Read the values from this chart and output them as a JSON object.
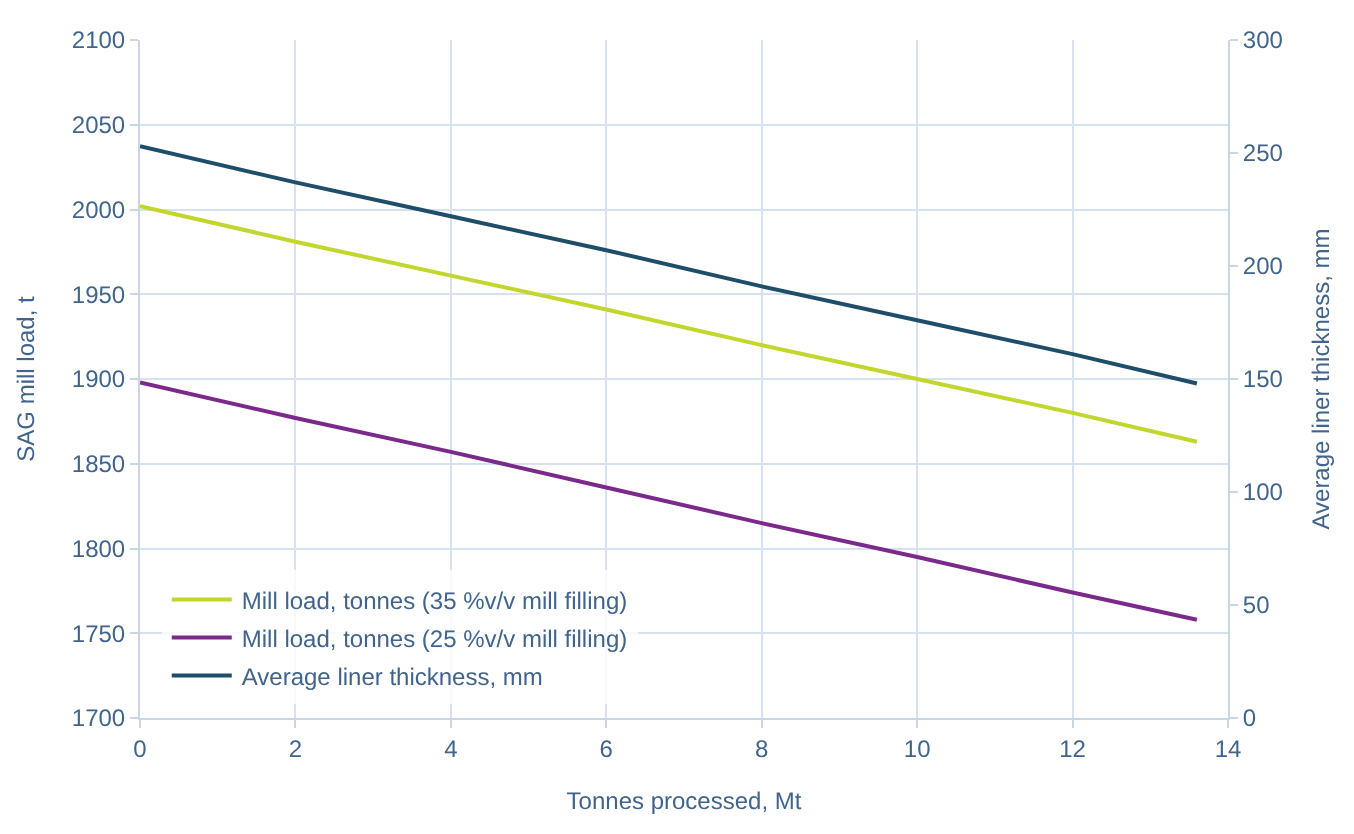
{
  "chart_data": {
    "type": "line",
    "xlabel": "Tonnes processed, Mt",
    "ylabel": "SAG mill load, t",
    "y2label": "Average liner thickness, mm",
    "x": [
      0,
      2,
      4,
      6,
      8,
      10,
      12,
      13.6
    ],
    "series": [
      {
        "name": "Mill load, tonnes (35 %v/v mill filling)",
        "color": "#c3d62e",
        "values": [
          2002,
          1981,
          1961,
          1941,
          1920,
          1900,
          1880,
          1863
        ]
      },
      {
        "name": "Mill load, tonnes (25 %v/v mill filling)",
        "color": "#7b2a8c",
        "values": [
          1898,
          1877,
          1857,
          1836,
          1815,
          1795,
          1774,
          1758
        ]
      },
      {
        "name": "Average liner thickness, mm",
        "color": "#1f4e6b",
        "axis": "y2",
        "values": [
          253,
          237,
          222,
          207,
          191,
          176,
          161,
          148
        ]
      }
    ],
    "xlim": [
      0,
      14
    ],
    "xticks": [
      0,
      2,
      4,
      6,
      8,
      10,
      12,
      14
    ],
    "ylim": [
      1700,
      2100
    ],
    "yticks": [
      1700,
      1750,
      1800,
      1850,
      1900,
      1950,
      2000,
      2050,
      2100
    ],
    "y2lim": [
      0,
      300
    ],
    "y2ticks": [
      0,
      50,
      100,
      150,
      200,
      250,
      300
    ],
    "grid": true,
    "legend": "bottom left",
    "marker": "none",
    "line_style": "solid"
  }
}
